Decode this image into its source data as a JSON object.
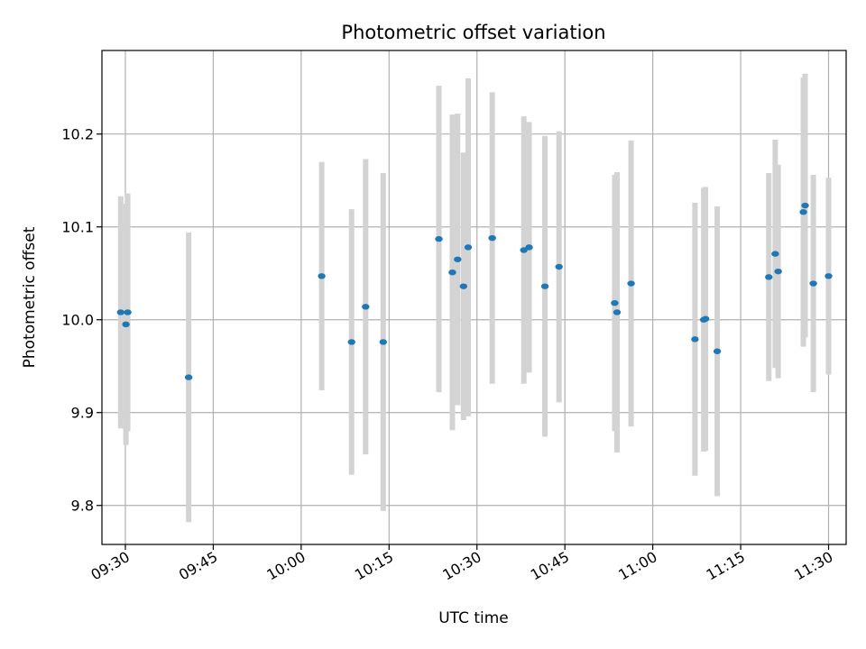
{
  "chart_data": {
    "type": "scatter",
    "title": "Photometric offset variation",
    "xlabel": "UTC time",
    "ylabel": "Photometric offset",
    "x_unit": "minutes",
    "xlim": [
      "09:26",
      "11:33"
    ],
    "ylim": [
      9.758,
      10.29
    ],
    "grid": true,
    "colors": {
      "point": "#1f77b4",
      "errorbar": "#d3d3d3",
      "grid": "#b0b0b0",
      "axes": "#000000"
    },
    "x_ticks": [
      "09:30",
      "09:45",
      "10:00",
      "10:15",
      "10:30",
      "10:45",
      "11:00",
      "11:15",
      "11:30"
    ],
    "y_ticks": [
      "9.8",
      "9.9",
      "10.0",
      "10.1",
      "10.2"
    ],
    "points": [
      {
        "x": "09:29:12",
        "y": 10.008,
        "err": 0.125
      },
      {
        "x": "09:30:06",
        "y": 9.995,
        "err": 0.13
      },
      {
        "x": "09:30:24",
        "y": 10.008,
        "err": 0.128
      },
      {
        "x": "09:40:48",
        "y": 9.938,
        "err": 0.156
      },
      {
        "x": "10:03:30",
        "y": 10.047,
        "err": 0.123
      },
      {
        "x": "10:08:36",
        "y": 9.976,
        "err": 0.143
      },
      {
        "x": "10:11:00",
        "y": 10.014,
        "err": 0.159
      },
      {
        "x": "10:14:00",
        "y": 9.976,
        "err": 0.182
      },
      {
        "x": "10:23:30",
        "y": 10.087,
        "err": 0.165
      },
      {
        "x": "10:25:48",
        "y": 10.051,
        "err": 0.17
      },
      {
        "x": "10:26:42",
        "y": 10.065,
        "err": 0.157
      },
      {
        "x": "10:27:42",
        "y": 10.036,
        "err": 0.144
      },
      {
        "x": "10:28:30",
        "y": 10.078,
        "err": 0.182
      },
      {
        "x": "10:32:36",
        "y": 10.088,
        "err": 0.157
      },
      {
        "x": "10:38:00",
        "y": 10.075,
        "err": 0.144
      },
      {
        "x": "10:38:54",
        "y": 10.078,
        "err": 0.135
      },
      {
        "x": "10:41:36",
        "y": 10.036,
        "err": 0.162
      },
      {
        "x": "10:44:00",
        "y": 10.057,
        "err": 0.146
      },
      {
        "x": "10:53:30",
        "y": 10.018,
        "err": 0.138
      },
      {
        "x": "10:53:54",
        "y": 10.008,
        "err": 0.151
      },
      {
        "x": "10:56:18",
        "y": 10.039,
        "err": 0.154
      },
      {
        "x": "11:07:12",
        "y": 9.979,
        "err": 0.147
      },
      {
        "x": "11:08:42",
        "y": 10.0,
        "err": 0.142
      },
      {
        "x": "11:09:00",
        "y": 10.001,
        "err": 0.142
      },
      {
        "x": "11:11:00",
        "y": 9.966,
        "err": 0.156
      },
      {
        "x": "11:19:48",
        "y": 10.046,
        "err": 0.112
      },
      {
        "x": "11:20:54",
        "y": 10.071,
        "err": 0.123
      },
      {
        "x": "11:21:24",
        "y": 10.052,
        "err": 0.115
      },
      {
        "x": "11:25:42",
        "y": 10.116,
        "err": 0.145
      },
      {
        "x": "11:26:00",
        "y": 10.123,
        "err": 0.142
      },
      {
        "x": "11:27:24",
        "y": 10.039,
        "err": 0.117
      },
      {
        "x": "11:30:00",
        "y": 10.047,
        "err": 0.106
      }
    ]
  }
}
